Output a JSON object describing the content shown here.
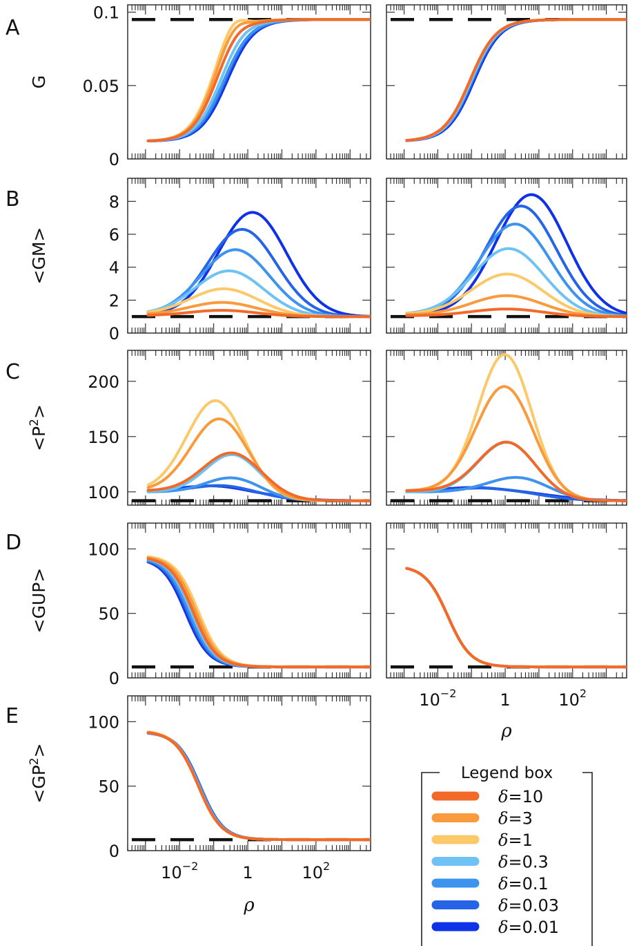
{
  "x_axis": {
    "label": "ρ",
    "scale": "log",
    "range": [
      0.0003,
      4000
    ],
    "tick_labels": [
      "10^-2",
      "1",
      "10^2"
    ],
    "tick_values": [
      0.01,
      1,
      100
    ]
  },
  "legend": {
    "title": "Legend box",
    "items": [
      {
        "label": "δ=10",
        "color": "#F26A2A"
      },
      {
        "label": "δ=3",
        "color": "#F99A3C"
      },
      {
        "label": "δ=1",
        "color": "#FBC96A"
      },
      {
        "label": "δ=0.3",
        "color": "#6EC3F4"
      },
      {
        "label": "δ=0.1",
        "color": "#3D93EE"
      },
      {
        "label": "δ=0.03",
        "color": "#2564E6"
      },
      {
        "label": "δ=0.01",
        "color": "#0F32E8"
      }
    ]
  },
  "chart_data": [
    {
      "type": "line",
      "panel": "A",
      "column": "left",
      "ylabel": "G",
      "ylim": [
        0,
        0.105
      ],
      "yticks": [
        0,
        0.05,
        0.1
      ],
      "ytick_labels": [
        "0",
        "0.05",
        "0.1"
      ],
      "reference_line": 0.095,
      "series": [
        {
          "name": "δ=0.01",
          "shape": "sigmoid",
          "x_mid": 0.25,
          "width": 1.25,
          "y_start": 0.012,
          "y_end": 0.095,
          "peak": 0
        },
        {
          "name": "δ=0.03",
          "shape": "sigmoid",
          "x_mid": 0.22,
          "width": 1.25,
          "y_start": 0.012,
          "y_end": 0.095,
          "peak": 0
        },
        {
          "name": "δ=0.1",
          "shape": "sigmoid",
          "x_mid": 0.2,
          "width": 1.25,
          "y_start": 0.012,
          "y_end": 0.095,
          "peak": 0
        },
        {
          "name": "δ=0.3",
          "shape": "sigmoid",
          "x_mid": 0.16,
          "width": 1.2,
          "y_start": 0.012,
          "y_end": 0.095,
          "peak": 0.001
        },
        {
          "name": "δ=1",
          "shape": "sigmoid",
          "x_mid": 0.09,
          "width": 1.1,
          "y_start": 0.012,
          "y_end": 0.095,
          "peak": 0.008
        },
        {
          "name": "δ=3",
          "shape": "sigmoid",
          "x_mid": 0.1,
          "width": 1.1,
          "y_start": 0.012,
          "y_end": 0.095,
          "peak": 0.005
        },
        {
          "name": "δ=10",
          "shape": "sigmoid",
          "x_mid": 0.12,
          "width": 1.15,
          "y_start": 0.012,
          "y_end": 0.095,
          "peak": 0.002
        }
      ]
    },
    {
      "type": "line",
      "panel": "A",
      "column": "right",
      "ylabel": "",
      "ylim": [
        0,
        0.105
      ],
      "yticks": [],
      "ytick_labels": [],
      "reference_line": 0.095,
      "series": [
        {
          "name": "δ=0.01",
          "shape": "sigmoid",
          "x_mid": 0.12,
          "width": 1.25,
          "y_start": 0.012,
          "y_end": 0.095,
          "peak": 0
        },
        {
          "name": "δ=0.03",
          "shape": "sigmoid",
          "x_mid": 0.11,
          "width": 1.25,
          "y_start": 0.012,
          "y_end": 0.095,
          "peak": 0
        },
        {
          "name": "δ=0.1",
          "shape": "sigmoid",
          "x_mid": 0.1,
          "width": 1.25,
          "y_start": 0.012,
          "y_end": 0.095,
          "peak": 0
        },
        {
          "name": "δ=0.3",
          "shape": "sigmoid",
          "x_mid": 0.1,
          "width": 1.25,
          "y_start": 0.012,
          "y_end": 0.095,
          "peak": 0
        },
        {
          "name": "δ=1",
          "shape": "sigmoid",
          "x_mid": 0.09,
          "width": 1.25,
          "y_start": 0.012,
          "y_end": 0.095,
          "peak": 0
        },
        {
          "name": "δ=3",
          "shape": "sigmoid",
          "x_mid": 0.09,
          "width": 1.25,
          "y_start": 0.012,
          "y_end": 0.095,
          "peak": 0
        },
        {
          "name": "δ=10",
          "shape": "sigmoid",
          "x_mid": 0.09,
          "width": 1.25,
          "y_start": 0.012,
          "y_end": 0.095,
          "peak": 0
        }
      ]
    },
    {
      "type": "line",
      "panel": "B",
      "column": "left",
      "ylabel": "<GM>",
      "ylim": [
        0,
        9.4
      ],
      "yticks": [
        0,
        2,
        4,
        6,
        8
      ],
      "ytick_labels": [
        "0",
        "2",
        "4",
        "6",
        "8"
      ],
      "reference_line": 1,
      "series": [
        {
          "name": "δ=0.01",
          "shape": "bump",
          "x_peak": 1.4,
          "width": 1.0,
          "y_base": 1,
          "y_start": 1.15,
          "y_peak": 7.3
        },
        {
          "name": "δ=0.03",
          "shape": "bump",
          "x_peak": 0.7,
          "width": 1.0,
          "y_base": 1,
          "y_start": 1.15,
          "y_peak": 6.25
        },
        {
          "name": "δ=0.1",
          "shape": "bump",
          "x_peak": 0.45,
          "width": 1.0,
          "y_base": 1,
          "y_start": 1.15,
          "y_peak": 5.0
        },
        {
          "name": "δ=0.3",
          "shape": "bump",
          "x_peak": 0.3,
          "width": 1.0,
          "y_base": 1,
          "y_start": 1.15,
          "y_peak": 3.7
        },
        {
          "name": "δ=1",
          "shape": "bump",
          "x_peak": 0.22,
          "width": 1.0,
          "y_base": 1,
          "y_start": 1.15,
          "y_peak": 2.6
        },
        {
          "name": "δ=3",
          "shape": "bump",
          "x_peak": 0.2,
          "width": 1.0,
          "y_base": 1,
          "y_start": 1.1,
          "y_peak": 1.8
        },
        {
          "name": "δ=10",
          "shape": "bump",
          "x_peak": 0.2,
          "width": 1.0,
          "y_base": 1,
          "y_start": 1.05,
          "y_peak": 1.35
        }
      ]
    },
    {
      "type": "line",
      "panel": "B",
      "column": "right",
      "ylabel": "",
      "ylim": [
        0,
        9.4
      ],
      "yticks": [],
      "ytick_labels": [],
      "reference_line": 1,
      "series": [
        {
          "name": "δ=0.01",
          "shape": "bump",
          "x_peak": 6,
          "width": 1.05,
          "y_base": 1,
          "y_start": 1.15,
          "y_peak": 8.4
        },
        {
          "name": "δ=0.03",
          "shape": "bump",
          "x_peak": 3,
          "width": 1.05,
          "y_base": 1,
          "y_start": 1.15,
          "y_peak": 7.7
        },
        {
          "name": "δ=0.1",
          "shape": "bump",
          "x_peak": 2,
          "width": 1.05,
          "y_base": 1,
          "y_start": 1.15,
          "y_peak": 6.6
        },
        {
          "name": "δ=0.3",
          "shape": "bump",
          "x_peak": 1.3,
          "width": 1.05,
          "y_base": 1,
          "y_start": 1.15,
          "y_peak": 5.1
        },
        {
          "name": "δ=1",
          "shape": "bump",
          "x_peak": 1.2,
          "width": 1.05,
          "y_base": 1,
          "y_start": 1.15,
          "y_peak": 3.55
        },
        {
          "name": "δ=3",
          "shape": "bump",
          "x_peak": 1.2,
          "width": 1.05,
          "y_base": 1,
          "y_start": 1.1,
          "y_peak": 2.25
        },
        {
          "name": "δ=10",
          "shape": "bump",
          "x_peak": 1.2,
          "width": 1.05,
          "y_base": 1,
          "y_start": 1.05,
          "y_peak": 1.45
        }
      ]
    },
    {
      "type": "line",
      "panel": "C",
      "column": "left",
      "ylabel": "<P^2>",
      "ylim": [
        88,
        228
      ],
      "yticks": [
        100,
        150,
        200
      ],
      "ytick_labels": [
        "100",
        "150",
        "200"
      ],
      "reference_line": 92,
      "series": [
        {
          "name": "δ=0.01",
          "shape": "bump",
          "x_peak": 0.3,
          "width": 1.2,
          "y_base": 92,
          "y_start": 100,
          "y_peak": 100
        },
        {
          "name": "δ=0.03",
          "shape": "bump",
          "x_peak": 0.35,
          "width": 0.95,
          "y_base": 92,
          "y_start": 100,
          "y_peak": 101
        },
        {
          "name": "δ=0.1",
          "shape": "bump",
          "x_peak": 0.45,
          "width": 0.8,
          "y_base": 92,
          "y_start": 100,
          "y_peak": 109
        },
        {
          "name": "δ=0.3",
          "shape": "bump",
          "x_peak": 0.4,
          "width": 0.8,
          "y_base": 92,
          "y_start": 100,
          "y_peak": 130
        },
        {
          "name": "δ=1",
          "shape": "bump",
          "x_peak": 0.12,
          "width": 0.85,
          "y_base": 92,
          "y_start": 101,
          "y_peak": 176
        },
        {
          "name": "δ=3",
          "shape": "bump",
          "x_peak": 0.16,
          "width": 0.85,
          "y_base": 92,
          "y_start": 101,
          "y_peak": 160
        },
        {
          "name": "δ=10",
          "shape": "bump",
          "x_peak": 0.4,
          "width": 0.85,
          "y_base": 92,
          "y_start": 101,
          "y_peak": 131
        }
      ]
    },
    {
      "type": "line",
      "panel": "C",
      "column": "right",
      "ylabel": "",
      "ylim": [
        88,
        228
      ],
      "yticks": [],
      "ytick_labels": [],
      "reference_line": 92,
      "series": [
        {
          "name": "δ=0.01",
          "shape": "bump",
          "x_peak": 1.0,
          "width": 1.3,
          "y_base": 92,
          "y_start": 100,
          "y_peak": 100
        },
        {
          "name": "δ=0.03",
          "shape": "bump",
          "x_peak": 1.0,
          "width": 1.1,
          "y_base": 92,
          "y_start": 100,
          "y_peak": 100
        },
        {
          "name": "δ=0.1",
          "shape": "bump",
          "x_peak": 2.5,
          "width": 0.9,
          "y_base": 92,
          "y_start": 100,
          "y_peak": 112
        },
        {
          "name": "δ=0.3",
          "shape": "bump",
          "x_peak": 1.2,
          "width": 0.85,
          "y_base": 92,
          "y_start": 100,
          "y_peak": 143
        },
        {
          "name": "δ=1",
          "shape": "bump",
          "x_peak": 1.0,
          "width": 0.8,
          "y_base": 92,
          "y_start": 101,
          "y_peak": 222
        },
        {
          "name": "δ=3",
          "shape": "bump",
          "x_peak": 1.0,
          "width": 0.85,
          "y_base": 92,
          "y_start": 101,
          "y_peak": 193
        },
        {
          "name": "δ=10",
          "shape": "bump",
          "x_peak": 1.2,
          "width": 0.85,
          "y_base": 92,
          "y_start": 101,
          "y_peak": 143
        }
      ]
    },
    {
      "type": "line",
      "panel": "D",
      "column": "left",
      "ylabel": "<GUP>",
      "ylim": [
        0,
        120
      ],
      "yticks": [
        0,
        50,
        100
      ],
      "ytick_labels": [
        "0",
        "50",
        "100"
      ],
      "reference_line": 8.5,
      "series": [
        {
          "name": "δ=0.01",
          "shape": "decay",
          "x_mid": 0.015,
          "width": 0.95,
          "y_start": 93,
          "y_end": 8.5
        },
        {
          "name": "δ=0.03",
          "shape": "decay",
          "x_mid": 0.017,
          "width": 0.95,
          "y_start": 93,
          "y_end": 8.5
        },
        {
          "name": "δ=0.1",
          "shape": "decay",
          "x_mid": 0.019,
          "width": 0.95,
          "y_start": 93.5,
          "y_end": 8.5
        },
        {
          "name": "δ=0.3",
          "shape": "decay",
          "x_mid": 0.022,
          "width": 0.95,
          "y_start": 94,
          "y_end": 8.5
        },
        {
          "name": "δ=1",
          "shape": "decay",
          "x_mid": 0.035,
          "width": 0.95,
          "y_start": 95,
          "y_end": 8.5
        },
        {
          "name": "δ=3",
          "shape": "decay",
          "x_mid": 0.03,
          "width": 0.95,
          "y_start": 94.5,
          "y_end": 8.5
        },
        {
          "name": "δ=10",
          "shape": "decay",
          "x_mid": 0.025,
          "width": 0.95,
          "y_start": 94,
          "y_end": 8.5
        }
      ]
    },
    {
      "type": "line",
      "panel": "D",
      "column": "right",
      "ylabel": "",
      "ylim": [
        0,
        120
      ],
      "yticks": [],
      "ytick_labels": [],
      "reference_line": 8.5,
      "series": [
        {
          "name": "δ=0.01",
          "shape": "decay",
          "x_mid": 0.02,
          "width": 0.95,
          "y_start": 87,
          "y_end": 8.5
        },
        {
          "name": "δ=0.03",
          "shape": "decay",
          "x_mid": 0.02,
          "width": 0.95,
          "y_start": 87,
          "y_end": 8.5
        },
        {
          "name": "δ=0.1",
          "shape": "decay",
          "x_mid": 0.02,
          "width": 0.95,
          "y_start": 87,
          "y_end": 8.5
        },
        {
          "name": "δ=0.3",
          "shape": "decay",
          "x_mid": 0.02,
          "width": 0.95,
          "y_start": 87,
          "y_end": 8.5
        },
        {
          "name": "δ=1",
          "shape": "decay",
          "x_mid": 0.02,
          "width": 0.95,
          "y_start": 87,
          "y_end": 8.5
        },
        {
          "name": "δ=3",
          "shape": "decay",
          "x_mid": 0.02,
          "width": 0.95,
          "y_start": 87,
          "y_end": 8.5
        },
        {
          "name": "δ=10",
          "shape": "decay",
          "x_mid": 0.02,
          "width": 0.95,
          "y_start": 87,
          "y_end": 8.5
        }
      ]
    },
    {
      "type": "line",
      "panel": "E",
      "column": "left",
      "ylabel": "<GP^2>",
      "ylim": [
        0,
        120
      ],
      "yticks": [
        0,
        50,
        100
      ],
      "ytick_labels": [
        "0",
        "50",
        "100"
      ],
      "reference_line": 8.5,
      "series": [
        {
          "name": "δ=0.01",
          "shape": "decay",
          "x_mid": 0.04,
          "width": 0.95,
          "y_start": 92,
          "y_end": 8.5
        },
        {
          "name": "δ=0.03",
          "shape": "decay",
          "x_mid": 0.04,
          "width": 0.95,
          "y_start": 92,
          "y_end": 8.5
        },
        {
          "name": "δ=0.1",
          "shape": "decay",
          "x_mid": 0.038,
          "width": 0.95,
          "y_start": 92,
          "y_end": 8.5
        },
        {
          "name": "δ=0.3",
          "shape": "decay",
          "x_mid": 0.036,
          "width": 0.95,
          "y_start": 92.5,
          "y_end": 8.5
        },
        {
          "name": "δ=1",
          "shape": "decay",
          "x_mid": 0.035,
          "width": 0.95,
          "y_start": 93,
          "y_end": 8.5
        },
        {
          "name": "δ=3",
          "shape": "decay",
          "x_mid": 0.035,
          "width": 0.95,
          "y_start": 93,
          "y_end": 8.5
        },
        {
          "name": "δ=10",
          "shape": "decay",
          "x_mid": 0.035,
          "width": 0.95,
          "y_start": 92.5,
          "y_end": 8.5
        }
      ]
    }
  ]
}
